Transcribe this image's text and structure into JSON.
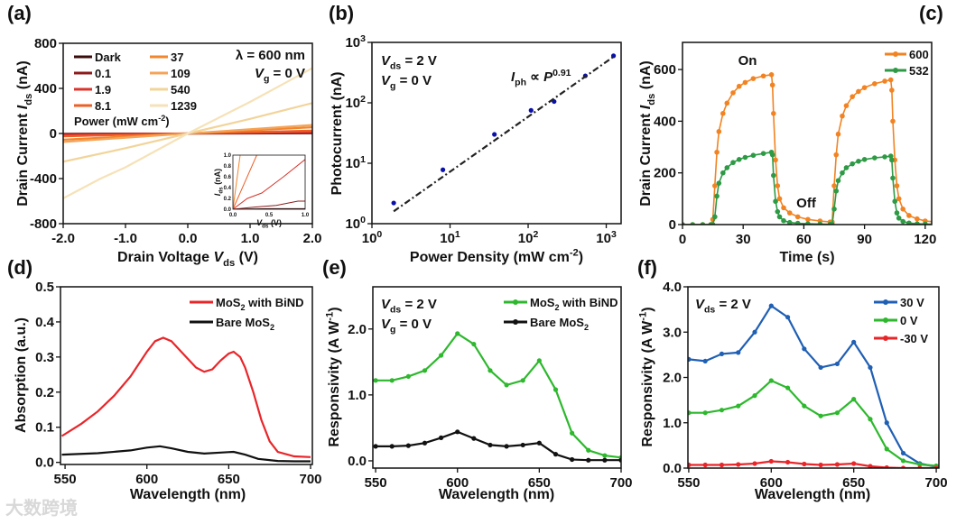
{
  "watermark": "大数跨境",
  "chart_data": [
    {
      "id": "a",
      "panel_label": "(a)",
      "type": "line",
      "xlabel": "Drain Voltage *V*_{ds} (V)",
      "ylabel": "Drain Current *I*_{ds} (nA)",
      "xlim": [
        -2,
        2
      ],
      "ylim": [
        -800,
        800
      ],
      "xscale": "linear",
      "yscale": "linear",
      "xticks": [
        {
          "v": -2,
          "t": "-2.0"
        },
        {
          "v": -1,
          "t": "-1.0"
        },
        {
          "v": 0,
          "t": "0.0"
        },
        {
          "v": 1,
          "t": "1.0"
        },
        {
          "v": 2,
          "t": "2.0"
        }
      ],
      "yticks": [
        {
          "v": -800,
          "t": "-800"
        },
        {
          "v": -400,
          "t": "-400"
        },
        {
          "v": 0,
          "t": "0"
        },
        {
          "v": 400,
          "t": "400"
        },
        {
          "v": 800,
          "t": "800"
        }
      ],
      "legend_title": "Power (mW cm^{-2})",
      "legend_placement": "top-left",
      "series": [
        {
          "name": "Dark",
          "color": "#3b0c0c",
          "x": [
            -2,
            2
          ],
          "y": [
            -2,
            2
          ]
        },
        {
          "name": "0.1",
          "color": "#8e1b1b",
          "x": [
            -2,
            2
          ],
          "y": [
            -5,
            5
          ]
        },
        {
          "name": "1.9",
          "color": "#d8352b",
          "x": [
            -2,
            2
          ],
          "y": [
            -12,
            12
          ]
        },
        {
          "name": "8.1",
          "color": "#ec5f26",
          "x": [
            -2,
            2
          ],
          "y": [
            -25,
            25
          ]
        },
        {
          "name": "37",
          "color": "#f2862c",
          "x": [
            -2,
            2
          ],
          "y": [
            -55,
            55
          ]
        },
        {
          "name": "109",
          "color": "#f4a45a",
          "x": [
            -2,
            2
          ],
          "y": [
            -75,
            75
          ]
        },
        {
          "name": "540",
          "color": "#f2d49a",
          "x": [
            -2,
            -1,
            0,
            1,
            2
          ],
          "y": [
            -250,
            -130,
            0,
            130,
            270
          ]
        },
        {
          "name": "1239",
          "color": "#f6e2b8",
          "x": [
            -2,
            -1.4,
            -1,
            0,
            1,
            1.5,
            2
          ],
          "y": [
            -575,
            -400,
            -300,
            0,
            280,
            430,
            580
          ]
        }
      ],
      "annotations": [
        "λ = 600 nm",
        "*V*_{g} = 0 V"
      ],
      "inset": {
        "xlabel": "*V*_{ds} (V)",
        "ylabel": "*I*_{ds} (nA)",
        "xlim": [
          0,
          1
        ],
        "ylim": [
          0,
          1
        ],
        "xticks": [
          {
            "v": 0,
            "t": "0.0"
          },
          {
            "v": 0.5,
            "t": "0.5"
          },
          {
            "v": 1,
            "t": "1.0"
          }
        ],
        "yticks": [
          {
            "v": 0,
            "t": "0.0"
          },
          {
            "v": 0.2,
            "t": "0.2"
          },
          {
            "v": 0.4,
            "t": "0.4"
          },
          {
            "v": 0.6,
            "t": "0.6"
          },
          {
            "v": 0.8,
            "t": "0.8"
          },
          {
            "v": 1,
            "t": "1.0"
          }
        ],
        "series": [
          {
            "color": "#3b0c0c",
            "x": [
              0,
              0.5,
              1
            ],
            "y": [
              0,
              0.01,
              0.01
            ]
          },
          {
            "color": "#8e1b1b",
            "x": [
              0,
              0.3,
              0.6,
              0.9,
              1
            ],
            "y": [
              0,
              0.04,
              0.07,
              0.15,
              0.15
            ]
          },
          {
            "color": "#d8352b",
            "x": [
              0,
              0.2,
              0.4,
              0.7,
              1
            ],
            "y": [
              0,
              0.2,
              0.3,
              0.6,
              0.92
            ]
          },
          {
            "color": "#ec5f26",
            "x": [
              0,
              0.33
            ],
            "y": [
              0,
              1
            ]
          },
          {
            "color": "#f2862c",
            "x": [
              0,
              0.1
            ],
            "y": [
              0,
              1
            ]
          }
        ]
      }
    },
    {
      "id": "b",
      "panel_label": "(b)",
      "type": "scatter",
      "xlabel": "Power Density (mW cm^{-2})",
      "ylabel": "Photocurrent (nA)",
      "xlim": [
        1,
        1550
      ],
      "ylim": [
        1,
        1000
      ],
      "xscale": "log",
      "yscale": "log",
      "xticks": [
        {
          "v": 1,
          "t": "10^{0}"
        },
        {
          "v": 10,
          "t": "10^{1}"
        },
        {
          "v": 100,
          "t": "10^{2}"
        },
        {
          "v": 1000,
          "t": "10^{3}"
        }
      ],
      "yticks": [
        {
          "v": 1,
          "t": "10^{0}"
        },
        {
          "v": 10,
          "t": "10^{1}"
        },
        {
          "v": 100,
          "t": "10^{2}"
        },
        {
          "v": 1000,
          "t": "10^{3}"
        }
      ],
      "series": [
        {
          "name": "data",
          "color": "#0a10a8",
          "x": [
            1.9,
            8.1,
            37,
            109,
            215,
            540,
            1239
          ],
          "y": [
            2.2,
            7.8,
            30,
            75,
            105,
            280,
            600
          ],
          "markers": true,
          "noline": true
        },
        {
          "name": "fit",
          "color": "#222222",
          "x": [
            1.9,
            1239
          ],
          "y": [
            1.6,
            580
          ],
          "dash": true
        }
      ],
      "annotations": [
        "*V*_{ds} = 2 V",
        "*V*_{g} = 0 V",
        "*I*_{ph} ∝ *P*^{0.91}"
      ]
    },
    {
      "id": "c",
      "panel_label": "(c)",
      "type": "line",
      "xlabel": "Time (s)",
      "ylabel": "Drain Current *I*_{ds} (nA)",
      "xlim": [
        0,
        123.2
      ],
      "ylim": [
        0,
        705
      ],
      "xscale": "linear",
      "yscale": "linear",
      "xticks": [
        {
          "v": 0,
          "t": "0"
        },
        {
          "v": 30,
          "t": "30"
        },
        {
          "v": 60,
          "t": "60"
        },
        {
          "v": 90,
          "t": "90"
        },
        {
          "v": 120,
          "t": "120"
        }
      ],
      "yticks": [
        {
          "v": 0,
          "t": "0"
        },
        {
          "v": 200,
          "t": "200"
        },
        {
          "v": 400,
          "t": "400"
        },
        {
          "v": 600,
          "t": "600"
        }
      ],
      "legend_placement": "top-right",
      "series": [
        {
          "name": "600",
          "color": "#f28322",
          "markers": true,
          "x": [
            0,
            5,
            10,
            14,
            15,
            16,
            17,
            18,
            20,
            22,
            25,
            28,
            31,
            35,
            40,
            44,
            44.5,
            45,
            46,
            47,
            48,
            50,
            53,
            57,
            62,
            68,
            73,
            74,
            75,
            76,
            77,
            79,
            81,
            84,
            87,
            90,
            95,
            100,
            103,
            103.5,
            104,
            105,
            106,
            107,
            109,
            112,
            116,
            120,
            125
          ],
          "y": [
            0,
            0,
            0,
            0,
            20,
            150,
            280,
            360,
            430,
            470,
            510,
            535,
            550,
            565,
            575,
            580,
            540,
            430,
            250,
            150,
            100,
            65,
            45,
            30,
            20,
            14,
            10,
            10,
            150,
            270,
            350,
            420,
            460,
            495,
            515,
            530,
            545,
            555,
            560,
            520,
            400,
            250,
            150,
            100,
            60,
            35,
            22,
            14,
            10
          ]
        },
        {
          "name": "532",
          "color": "#2e9a45",
          "markers": true,
          "x": [
            0,
            5,
            10,
            14,
            15,
            16,
            17,
            18,
            20,
            22,
            25,
            28,
            31,
            35,
            40,
            44,
            44.5,
            45,
            46,
            47,
            48,
            50,
            53,
            57,
            62,
            68,
            73,
            74,
            75,
            76,
            77,
            79,
            81,
            84,
            87,
            90,
            95,
            100,
            103,
            103.5,
            104,
            105,
            106,
            107,
            109,
            112,
            116,
            120,
            125
          ],
          "y": [
            0,
            0,
            0,
            0,
            0,
            30,
            110,
            160,
            200,
            220,
            240,
            252,
            260,
            268,
            275,
            280,
            270,
            190,
            90,
            50,
            30,
            15,
            8,
            5,
            3,
            2,
            1,
            1,
            60,
            130,
            170,
            200,
            220,
            235,
            245,
            252,
            258,
            262,
            265,
            250,
            180,
            90,
            45,
            25,
            12,
            6,
            3,
            2,
            1
          ]
        }
      ],
      "annotations": [
        "On",
        "Off"
      ]
    },
    {
      "id": "d",
      "panel_label": "(d)",
      "type": "line",
      "xlabel": "Wavelength (nm)",
      "ylabel": "Absorption (a.u.)",
      "xlim": [
        547.2,
        701.1
      ],
      "ylim": [
        -0.006,
        0.5
      ],
      "xscale": "linear",
      "yscale": "linear",
      "xticks": [
        {
          "v": 550,
          "t": "550"
        },
        {
          "v": 600,
          "t": "600"
        },
        {
          "v": 650,
          "t": "650"
        },
        {
          "v": 700,
          "t": "700"
        }
      ],
      "yticks": [
        {
          "v": 0,
          "t": "0.0"
        },
        {
          "v": 0.1,
          "t": "0.1"
        },
        {
          "v": 0.2,
          "t": "0.2"
        },
        {
          "v": 0.3,
          "t": "0.3"
        },
        {
          "v": 0.4,
          "t": "0.4"
        },
        {
          "v": 0.5,
          "t": "0.5"
        }
      ],
      "legend_placement": "top-right",
      "series": [
        {
          "name": "MoS_{2} with BiND",
          "color": "#e8262a",
          "x": [
            548,
            560,
            570,
            580,
            590,
            600,
            605,
            610,
            615,
            620,
            630,
            635,
            640,
            645,
            650,
            653,
            657,
            660,
            665,
            670,
            675,
            680,
            690,
            700
          ],
          "y": [
            0.075,
            0.11,
            0.145,
            0.19,
            0.245,
            0.315,
            0.345,
            0.355,
            0.345,
            0.32,
            0.27,
            0.258,
            0.265,
            0.29,
            0.31,
            0.315,
            0.3,
            0.27,
            0.2,
            0.12,
            0.06,
            0.03,
            0.017,
            0.015
          ]
        },
        {
          "name": "Bare MoS_{2}",
          "color": "#111111",
          "x": [
            548,
            570,
            590,
            600,
            608,
            615,
            625,
            635,
            645,
            653,
            660,
            668,
            680,
            690,
            700
          ],
          "y": [
            0.022,
            0.026,
            0.034,
            0.042,
            0.046,
            0.04,
            0.03,
            0.025,
            0.028,
            0.03,
            0.022,
            0.01,
            0.004,
            0.003,
            0.003
          ]
        }
      ]
    },
    {
      "id": "e",
      "panel_label": "(e)",
      "type": "line",
      "xlabel": "Wavelength (nm)",
      "ylabel": "Responsivity (A W^{-1})",
      "xlim": [
        548.3,
        700
      ],
      "ylim": [
        -0.11,
        2.64
      ],
      "xscale": "linear",
      "yscale": "linear",
      "xticks": [
        {
          "v": 550,
          "t": "550"
        },
        {
          "v": 600,
          "t": "600"
        },
        {
          "v": 650,
          "t": "650"
        },
        {
          "v": 700,
          "t": "700"
        }
      ],
      "yticks": [
        {
          "v": 0,
          "t": "0.0"
        },
        {
          "v": 1,
          "t": "1.0"
        },
        {
          "v": 2,
          "t": "2.0"
        }
      ],
      "legend_placement": "top-right",
      "series": [
        {
          "name": "MoS_{2} with BiND",
          "color": "#2db82d",
          "markers": true,
          "x": [
            550,
            560,
            570,
            580,
            590,
            600,
            610,
            620,
            630,
            640,
            650,
            660,
            670,
            680,
            690,
            700
          ],
          "y": [
            1.22,
            1.22,
            1.28,
            1.37,
            1.6,
            1.93,
            1.77,
            1.37,
            1.15,
            1.22,
            1.52,
            1.08,
            0.42,
            0.16,
            0.08,
            0.05
          ]
        },
        {
          "name": "Bare MoS_{2}",
          "color": "#111111",
          "markers": true,
          "x": [
            550,
            560,
            570,
            580,
            590,
            600,
            610,
            620,
            630,
            640,
            650,
            660,
            670,
            680,
            690,
            700
          ],
          "y": [
            0.22,
            0.22,
            0.23,
            0.27,
            0.35,
            0.44,
            0.34,
            0.24,
            0.22,
            0.24,
            0.27,
            0.1,
            0.02,
            0.01,
            0.01,
            0.01
          ]
        }
      ],
      "annotations": [
        "*V*_{ds} = 2 V",
        "*V*_{g} = 0 V"
      ]
    },
    {
      "id": "f",
      "panel_label": "(f)",
      "type": "line",
      "xlabel": "Wavelength (nm)",
      "ylabel": "Responsivity (A W^{-1})",
      "xlim": [
        549.5,
        701.6
      ],
      "ylim": [
        0,
        4
      ],
      "xscale": "linear",
      "yscale": "linear",
      "xticks": [
        {
          "v": 550,
          "t": "550"
        },
        {
          "v": 600,
          "t": "600"
        },
        {
          "v": 650,
          "t": "650"
        },
        {
          "v": 700,
          "t": "700"
        }
      ],
      "yticks": [
        {
          "v": 0,
          "t": "0.0"
        },
        {
          "v": 1,
          "t": "1.0"
        },
        {
          "v": 2,
          "t": "2.0"
        },
        {
          "v": 3,
          "t": "3.0"
        },
        {
          "v": 4,
          "t": "4.0"
        }
      ],
      "legend_placement": "top-right",
      "series": [
        {
          "name": "30 V",
          "color": "#1f5fb4",
          "markers": true,
          "x": [
            550,
            560,
            570,
            580,
            590,
            600,
            610,
            620,
            630,
            640,
            650,
            660,
            670,
            680,
            690,
            700
          ],
          "y": [
            2.4,
            2.36,
            2.52,
            2.55,
            3.0,
            3.58,
            3.33,
            2.63,
            2.22,
            2.3,
            2.78,
            2.22,
            1.0,
            0.33,
            0.1,
            0.03
          ]
        },
        {
          "name": "0 V",
          "color": "#2db82d",
          "markers": true,
          "x": [
            550,
            560,
            570,
            580,
            590,
            600,
            610,
            620,
            630,
            640,
            650,
            660,
            670,
            680,
            690,
            700
          ],
          "y": [
            1.22,
            1.22,
            1.28,
            1.37,
            1.6,
            1.93,
            1.77,
            1.37,
            1.15,
            1.22,
            1.52,
            1.08,
            0.42,
            0.16,
            0.08,
            0.05
          ]
        },
        {
          "name": "-30 V",
          "color": "#e8262a",
          "markers": true,
          "x": [
            550,
            560,
            570,
            580,
            590,
            600,
            610,
            620,
            630,
            640,
            650,
            660,
            670,
            680,
            690,
            700
          ],
          "y": [
            0.07,
            0.07,
            0.07,
            0.08,
            0.1,
            0.15,
            0.13,
            0.09,
            0.07,
            0.08,
            0.1,
            0.04,
            0.01,
            0,
            0,
            0
          ]
        }
      ],
      "annotations": [
        "*V*_{ds} = 2 V"
      ]
    }
  ]
}
